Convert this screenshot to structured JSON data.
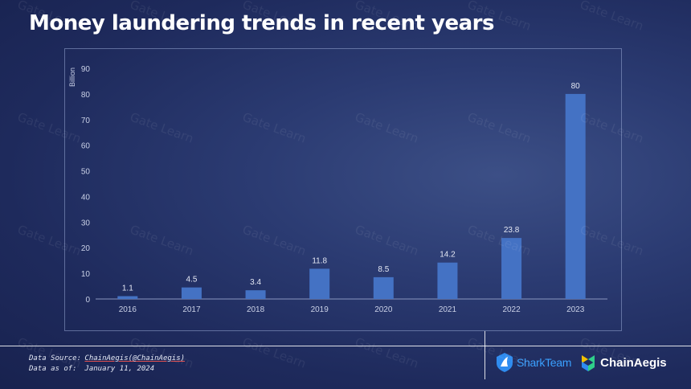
{
  "header": {
    "title": "Money laundering trends in recent years"
  },
  "watermark": {
    "text": "Gate Learn"
  },
  "footer": {
    "source_label": "Data Source:",
    "source_value": "ChainAegis(@ChainAegis)",
    "date_label": "Data as of:",
    "date_value": "January 11, 2024",
    "logo1": "SharkTeam",
    "logo2": "ChainAegis",
    "colors": {
      "sharkteam": "#2f8cf0",
      "chainaegis_green": "#2fcf8a",
      "chainaegis_yellow": "#f0c000",
      "chainaegis_blue": "#2f8cf0"
    }
  },
  "chart_data": {
    "type": "bar",
    "title": "",
    "xlabel": "",
    "ylabel": "Billion",
    "categories": [
      "2016",
      "2017",
      "2018",
      "2019",
      "2020",
      "2021",
      "2022",
      "2023"
    ],
    "values": [
      1.1,
      4.5,
      3.4,
      11.8,
      8.5,
      14.2,
      23.8,
      80
    ],
    "data_labels": [
      "1.1",
      "4.5",
      "3.4",
      "11.8",
      "8.5",
      "14.2",
      "23.8",
      "80"
    ],
    "yticks": [
      0,
      10,
      20,
      30,
      40,
      50,
      60,
      70,
      80,
      90
    ],
    "ylim": [
      0,
      90
    ],
    "grid": false,
    "bar_color": "#4472c4",
    "legend": "none"
  }
}
